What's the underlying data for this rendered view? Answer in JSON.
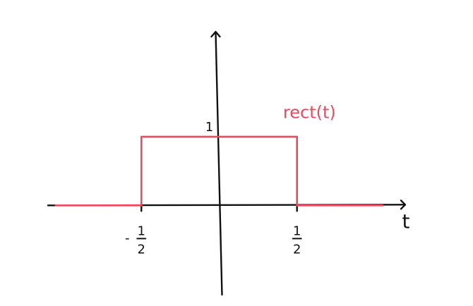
{
  "chart_data": {
    "type": "line",
    "title": "",
    "xlabel": "t",
    "ylabel": "",
    "xlim": [
      -1.1,
      1.2
    ],
    "ylim": [
      -1.3,
      2.6
    ],
    "grid": false,
    "legend": "none",
    "x_ticks": [
      {
        "value": -0.5,
        "label": "-1/2",
        "sign": "-",
        "num": "1",
        "den": "2"
      },
      {
        "value": 0.5,
        "label": "1/2",
        "sign": "",
        "num": "1",
        "den": "2"
      }
    ],
    "y_ticks": [
      {
        "value": 1,
        "label": "1"
      }
    ],
    "series": [
      {
        "name": "rect(t)",
        "color": "#ea4a5e",
        "points": [
          {
            "x": -1.05,
            "y": 0
          },
          {
            "x": -0.5,
            "y": 0
          },
          {
            "x": -0.5,
            "y": 1
          },
          {
            "x": 0.5,
            "y": 1
          },
          {
            "x": 0.5,
            "y": 0
          },
          {
            "x": 1.05,
            "y": 0
          }
        ]
      }
    ],
    "axis_color": "#111111"
  }
}
